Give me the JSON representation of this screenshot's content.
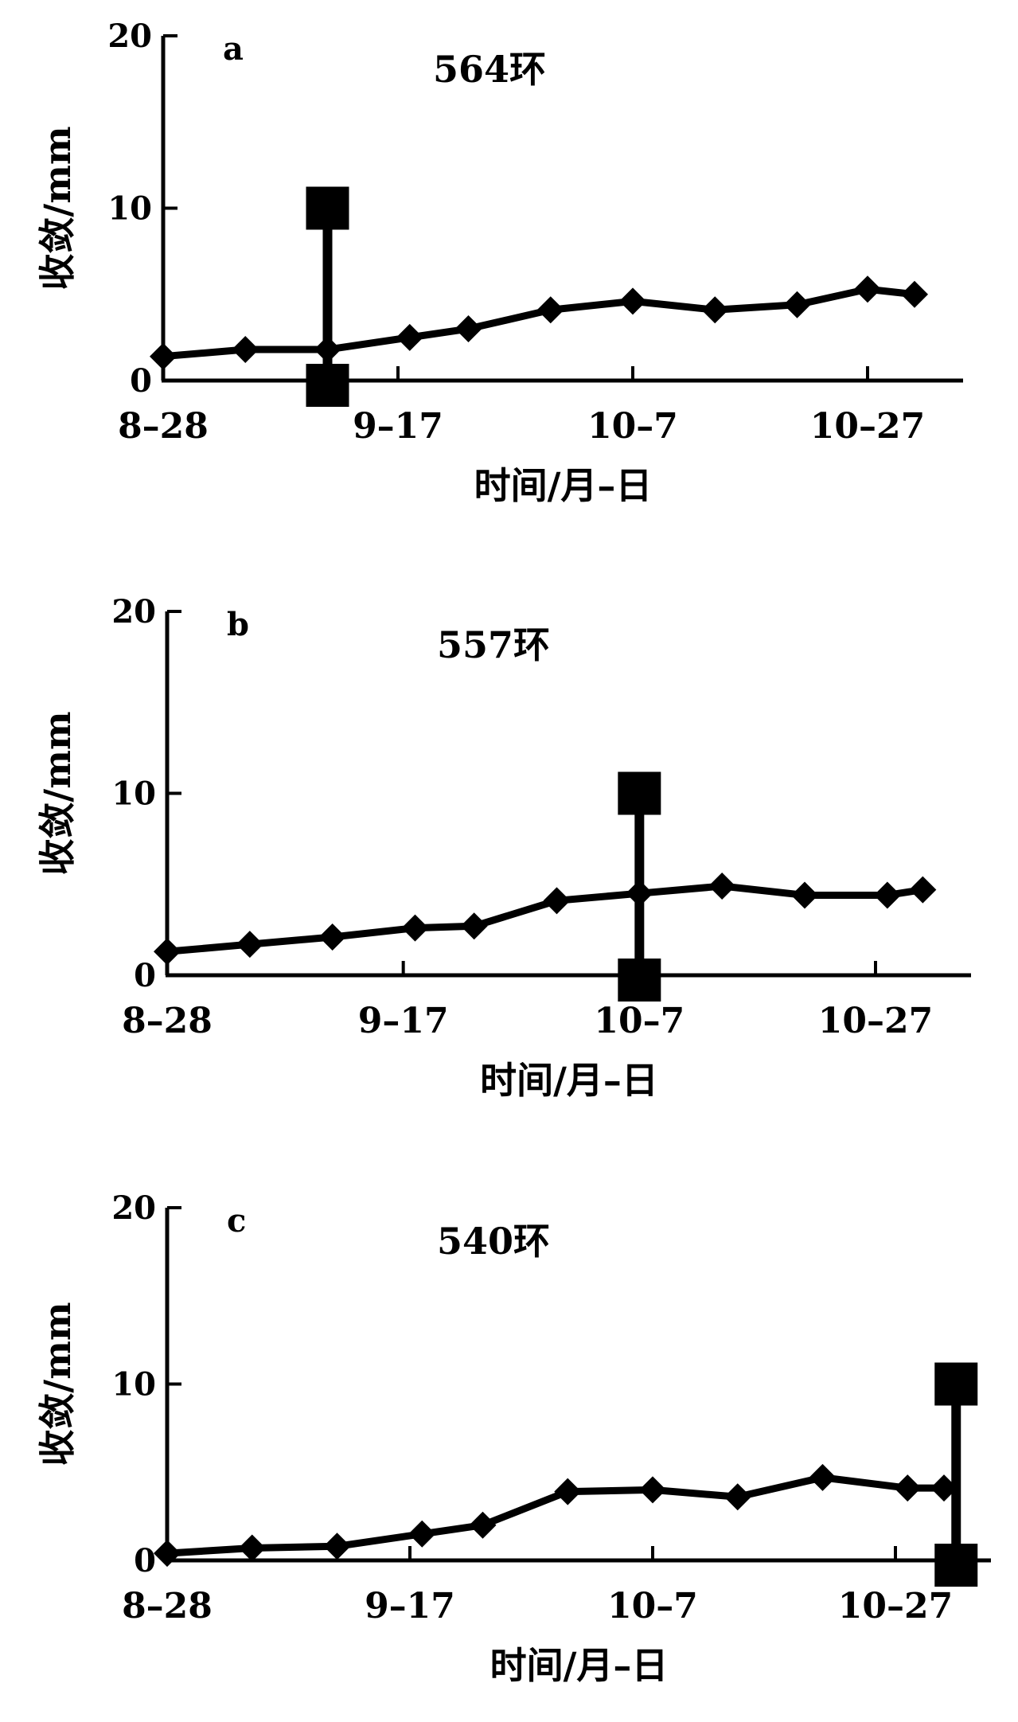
{
  "chart_data": [
    {
      "type": "line",
      "panel_label": "a",
      "title": "564环",
      "xlabel": "时间/月–日",
      "ylabel": "收敛/mm",
      "ylim": [
        0,
        20
      ],
      "y_ticks": [
        "0",
        "10",
        "20"
      ],
      "x_ticks": [
        "8–28",
        "9–17",
        "10–7",
        "10–27"
      ],
      "x_tick_days": [
        0,
        20,
        40,
        60
      ],
      "series": [
        {
          "marker": "diamond",
          "x_days": [
            0,
            7,
            14,
            21,
            26,
            33,
            40,
            47,
            54,
            60,
            64
          ],
          "values": [
            1.4,
            1.8,
            1.8,
            2.5,
            3.0,
            4.1,
            4.6,
            4.1,
            4.4,
            5.3,
            5.0
          ]
        }
      ],
      "marker_bar": {
        "x_days": 14,
        "top_value": 10,
        "bottom_value": 0
      },
      "grid": false,
      "legend": "none"
    },
    {
      "type": "line",
      "panel_label": "b",
      "title": "557环",
      "xlabel": "时间/月–日",
      "ylabel": "收敛/mm",
      "ylim": [
        0,
        20
      ],
      "y_ticks": [
        "0",
        "10",
        "20"
      ],
      "x_ticks": [
        "8–28",
        "9–17",
        "10–7",
        "10–27"
      ],
      "x_tick_days": [
        0,
        20,
        40,
        60
      ],
      "series": [
        {
          "marker": "diamond",
          "x_days": [
            0,
            7,
            14,
            21,
            26,
            33,
            40,
            47,
            54,
            61,
            64
          ],
          "values": [
            1.3,
            1.7,
            2.1,
            2.6,
            2.7,
            4.1,
            4.5,
            4.9,
            4.4,
            4.4,
            4.7
          ]
        }
      ],
      "marker_bar": {
        "x_days": 40,
        "top_value": 10,
        "bottom_value": 0
      },
      "grid": false,
      "legend": "none"
    },
    {
      "type": "line",
      "panel_label": "c",
      "title": "540环",
      "xlabel": "时间/月–日",
      "ylabel": "收敛/mm",
      "ylim": [
        0,
        20
      ],
      "y_ticks": [
        "0",
        "10",
        "20"
      ],
      "x_ticks": [
        "8–28",
        "9–17",
        "10–7",
        "10–27"
      ],
      "x_tick_days": [
        0,
        20,
        40,
        60
      ],
      "series": [
        {
          "marker": "diamond",
          "x_days": [
            0,
            7,
            14,
            21,
            26,
            33,
            40,
            47,
            54,
            61,
            64
          ],
          "values": [
            0.4,
            0.7,
            0.8,
            1.5,
            2.0,
            3.9,
            4.0,
            3.6,
            4.7,
            4.1,
            4.1
          ]
        }
      ],
      "marker_bar": {
        "x_days": 65,
        "top_value": 10,
        "bottom_value": 0
      },
      "grid": false,
      "legend": "none"
    }
  ]
}
